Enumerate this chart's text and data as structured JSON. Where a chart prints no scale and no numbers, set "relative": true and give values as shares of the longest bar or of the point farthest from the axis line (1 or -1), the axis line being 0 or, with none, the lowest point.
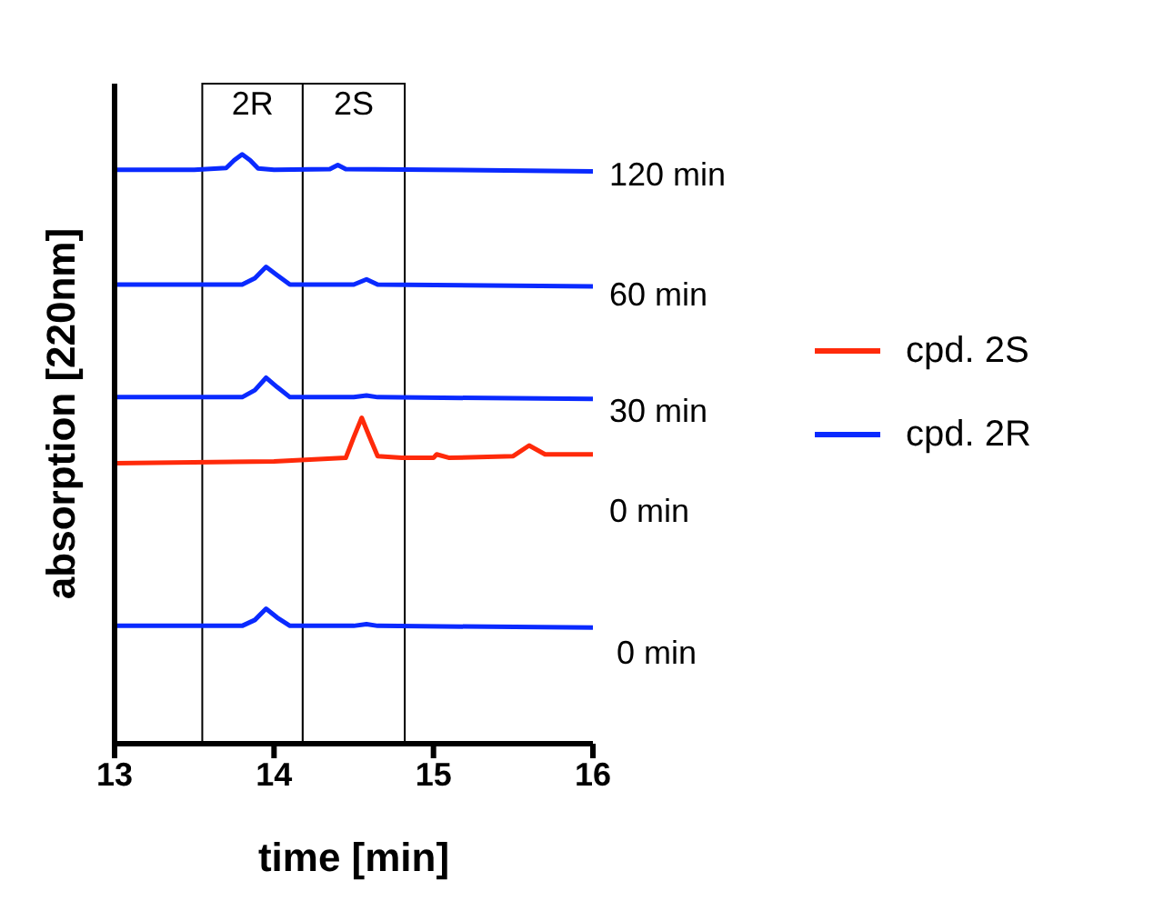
{
  "chart_data": {
    "type": "line",
    "relative": true,
    "xlabel": "time [min]",
    "ylabel": "absorption [220nm]",
    "xlim": [
      13,
      16
    ],
    "xticks": [
      13,
      14,
      15,
      16
    ],
    "legend": "right",
    "grid": false,
    "marker": "none",
    "line_style": "solid",
    "series": [
      {
        "name": "cpd. 2S",
        "color": "#ff2a0a",
        "x": [
          13,
          14.0,
          14.45,
          14.5,
          14.55,
          14.6,
          14.65,
          14.8,
          15.0,
          15.02,
          15.1,
          15.5,
          15.6,
          15.7,
          16
        ],
        "values": [
          0.476,
          0.479,
          0.485,
          0.52,
          0.553,
          0.52,
          0.488,
          0.485,
          0.485,
          0.491,
          0.485,
          0.488,
          0.506,
          0.491,
          0.491
        ]
      },
      {
        "name": "cpd. 2R",
        "color": "#0a2aff",
        "x": [
          13,
          13.8,
          13.88,
          13.95,
          14.02,
          14.1,
          14.5,
          14.58,
          14.65,
          16
        ],
        "values": [
          0.2,
          0.2,
          0.21,
          0.229,
          0.214,
          0.2,
          0.2,
          0.203,
          0.2,
          0.197
        ]
      },
      {
        "color": "#0a2aff",
        "x": [
          13,
          13.8,
          13.88,
          13.95,
          14.02,
          14.1,
          14.5,
          14.58,
          14.65,
          16
        ],
        "values": [
          0.588,
          0.588,
          0.6,
          0.621,
          0.605,
          0.588,
          0.588,
          0.591,
          0.588,
          0.585
        ]
      },
      {
        "color": "#0a2aff",
        "x": [
          13,
          13.8,
          13.88,
          13.95,
          14.02,
          14.1,
          14.5,
          14.58,
          14.65,
          16
        ],
        "values": [
          0.779,
          0.779,
          0.79,
          0.809,
          0.795,
          0.779,
          0.779,
          0.788,
          0.779,
          0.776
        ]
      },
      {
        "color": "#0a2aff",
        "x": [
          13,
          13.5,
          13.7,
          13.75,
          13.8,
          13.85,
          13.9,
          14.0,
          14.35,
          14.4,
          14.45,
          15,
          16
        ],
        "values": [
          0.974,
          0.974,
          0.977,
          0.99,
          1.0,
          0.99,
          0.976,
          0.974,
          0.975,
          0.982,
          0.975,
          0.974,
          0.971
        ]
      }
    ],
    "bands": [
      {
        "axis": "x",
        "from": 13.55,
        "to": 14.18,
        "label": "2R",
        "color": "#ffffff"
      },
      {
        "axis": "x",
        "from": 14.18,
        "to": 14.82,
        "label": "2S",
        "color": "#ffffff"
      }
    ],
    "annotations": [
      "120 min",
      "60 min",
      "30 min",
      "0 min",
      "0 min"
    ]
  }
}
